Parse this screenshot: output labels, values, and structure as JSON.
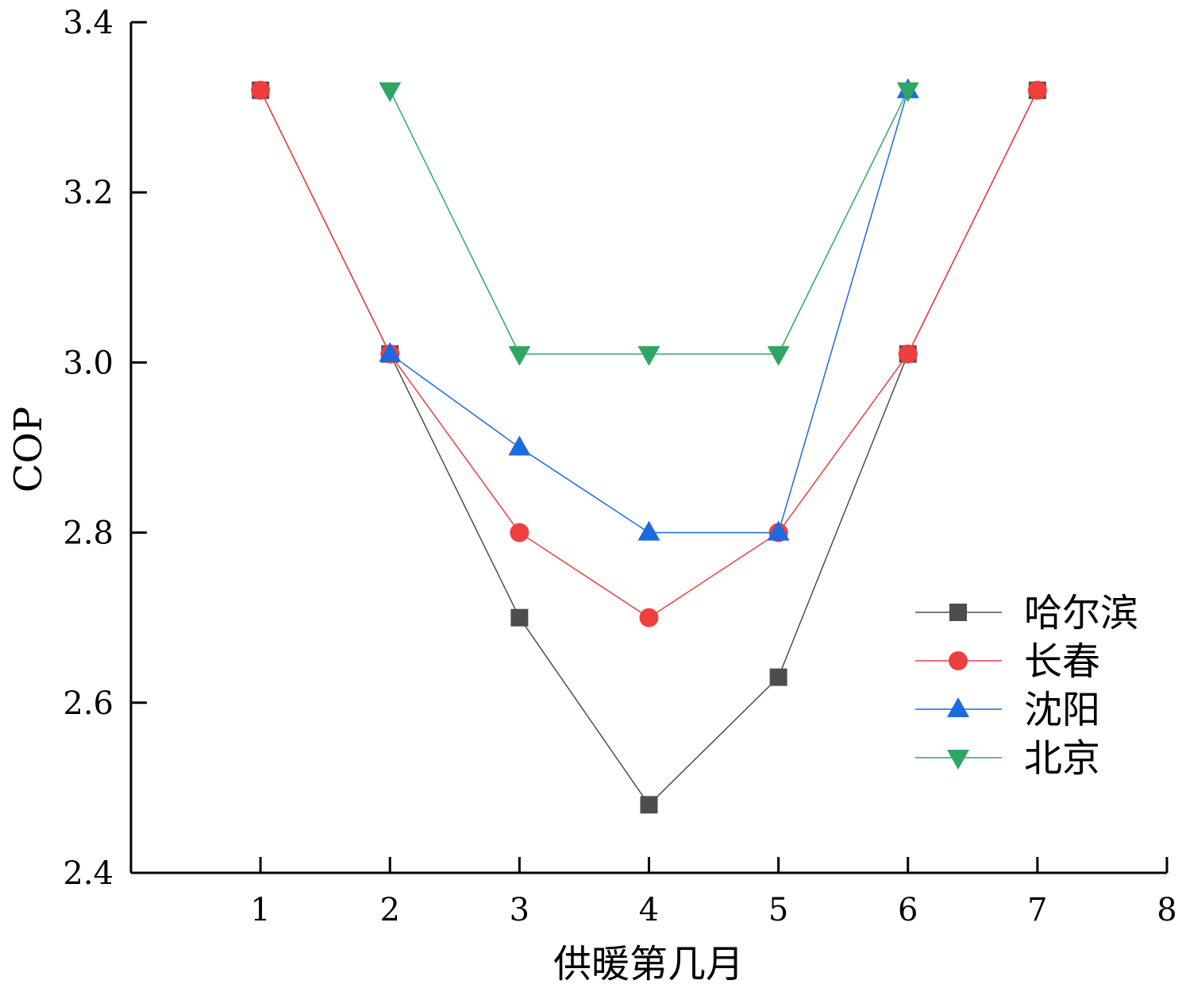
{
  "chart_data": {
    "type": "line",
    "xlabel": "供暖第几月",
    "ylabel": "COP",
    "xlim": [
      0,
      8
    ],
    "ylim": [
      2.4,
      3.4
    ],
    "xticks": [
      1,
      2,
      3,
      4,
      5,
      6,
      7,
      8
    ],
    "yticks": [
      2.4,
      2.6,
      2.8,
      3.0,
      3.2,
      3.4
    ],
    "ytick_labels": [
      "2.4",
      "2.6",
      "2.8",
      "3.0",
      "3.2",
      "3.4"
    ],
    "grid": false,
    "legend_position": "bottom-right",
    "series": [
      {
        "name": "哈尔滨",
        "color": "#4d4d4d",
        "marker": "square",
        "x": [
          1,
          2,
          3,
          4,
          5,
          6,
          7
        ],
        "y": [
          3.32,
          3.01,
          2.7,
          2.48,
          2.63,
          3.01,
          3.32
        ]
      },
      {
        "name": "长春",
        "color": "#ef3e3e",
        "marker": "circle",
        "x": [
          1,
          2,
          3,
          4,
          5,
          6,
          7
        ],
        "y": [
          3.32,
          3.01,
          2.8,
          2.7,
          2.8,
          3.01,
          3.32
        ]
      },
      {
        "name": "沈阳",
        "color": "#1b6ae0",
        "marker": "triangle-up",
        "x": [
          2,
          3,
          4,
          5,
          6
        ],
        "y": [
          3.01,
          2.9,
          2.8,
          2.8,
          3.32
        ]
      },
      {
        "name": "北京",
        "color": "#2fa764",
        "marker": "triangle-down",
        "x": [
          2,
          3,
          4,
          5,
          6
        ],
        "y": [
          3.32,
          3.01,
          3.01,
          3.01,
          3.32
        ]
      }
    ]
  }
}
